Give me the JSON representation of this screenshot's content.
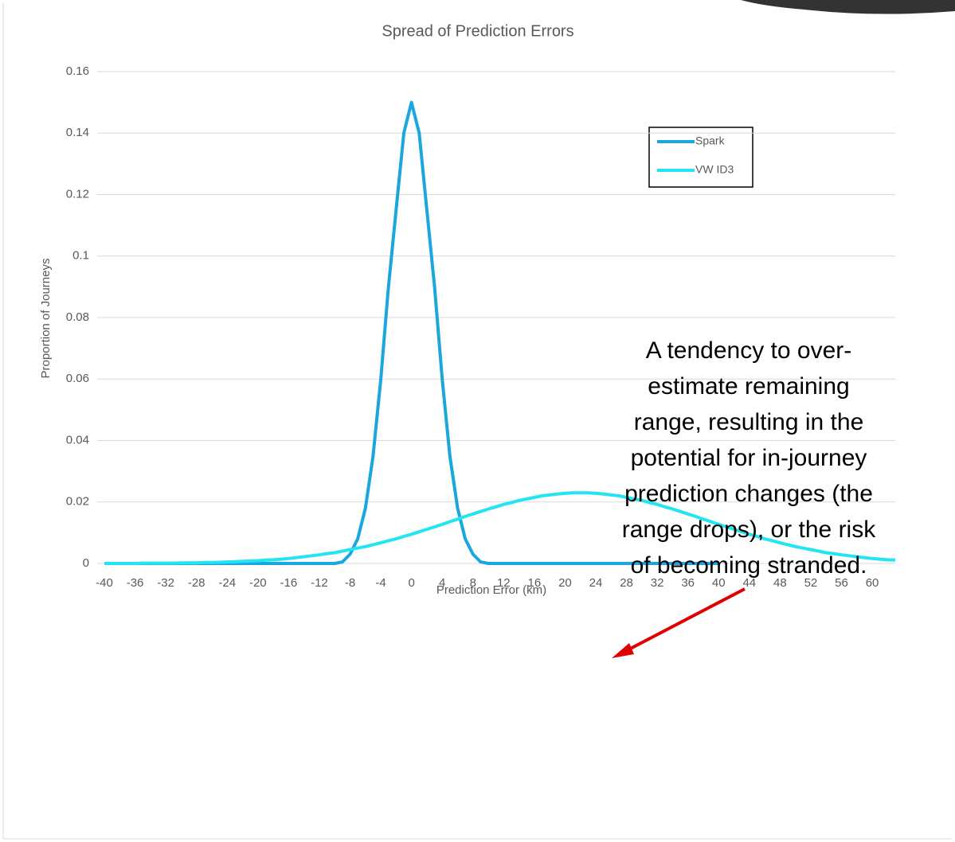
{
  "chart_data": {
    "type": "line",
    "title": "Spread of Prediction Errors",
    "x_label": "Prediction Error (km)",
    "y_label": "Proportion of Journeys",
    "x": [
      -40,
      -39,
      -38,
      -37,
      -36,
      -35,
      -34,
      -33,
      -32,
      -31,
      -30,
      -29,
      -28,
      -27,
      -26,
      -25,
      -24,
      -23,
      -22,
      -21,
      -20,
      -19,
      -18,
      -17,
      -16,
      -15,
      -14,
      -13,
      -12,
      -11,
      -10,
      -9,
      -8,
      -7,
      -6,
      -5,
      -4,
      -3,
      -2,
      -1,
      0,
      1,
      2,
      3,
      4,
      5,
      6,
      7,
      8,
      9,
      10,
      11,
      12,
      13,
      14,
      15,
      16,
      17,
      18,
      19,
      20,
      21,
      22,
      23,
      24,
      25,
      26,
      27,
      28,
      29,
      30,
      31,
      32,
      33,
      34,
      35,
      36,
      37,
      38,
      39,
      40,
      41,
      42,
      43,
      44,
      45,
      46,
      47,
      48,
      49,
      50,
      51,
      52,
      53,
      54,
      55,
      56,
      57,
      58,
      59,
      60,
      61,
      62,
      63
    ],
    "series": [
      {
        "name": "Spark",
        "color": "#1aa7de",
        "values": [
          0,
          0,
          0,
          0,
          0,
          0,
          0,
          0,
          0,
          0,
          0,
          0,
          0,
          0,
          0,
          0,
          0,
          0,
          0,
          0,
          0,
          0,
          0,
          0,
          0,
          0,
          0,
          0,
          0,
          0,
          0,
          0.0005,
          0.003,
          0.008,
          0.018,
          0.035,
          0.06,
          0.09,
          0.115,
          0.14,
          0.15,
          0.14,
          0.115,
          0.09,
          0.06,
          0.035,
          0.018,
          0.008,
          0.003,
          0.0005,
          0,
          0,
          0,
          0,
          0,
          0,
          0,
          0,
          0,
          0,
          0,
          0,
          0,
          0,
          0,
          0,
          0,
          0,
          0,
          0,
          0,
          0,
          0,
          0,
          0,
          0,
          0,
          0,
          0,
          0,
          0,
          null,
          null,
          null,
          null,
          null,
          null,
          null,
          null,
          null,
          null,
          null,
          null,
          null,
          null,
          null,
          null,
          null,
          null,
          null,
          null,
          null,
          null,
          null
        ]
      },
      {
        "name": "VW ID3",
        "color": "#22e4f2",
        "values": [
          0,
          0,
          0,
          0,
          0,
          0.0001,
          0.0001,
          0.0001,
          0.0001,
          0.0001,
          0.0002,
          0.0002,
          0.0002,
          0.0003,
          0.0003,
          0.0004,
          0.0005,
          0.0006,
          0.0007,
          0.0008,
          0.0009,
          0.0011,
          0.0012,
          0.0014,
          0.0016,
          0.0019,
          0.0022,
          0.0025,
          0.0028,
          0.0032,
          0.0035,
          0.004,
          0.0045,
          0.005,
          0.0055,
          0.0061,
          0.0067,
          0.0074,
          0.008,
          0.0088,
          0.0095,
          0.0103,
          0.0111,
          0.0119,
          0.0127,
          0.0136,
          0.0144,
          0.0153,
          0.0161,
          0.0169,
          0.0177,
          0.0184,
          0.0192,
          0.0198,
          0.0205,
          0.021,
          0.0215,
          0.022,
          0.0223,
          0.0226,
          0.0228,
          0.023,
          0.023,
          0.023,
          0.0228,
          0.0226,
          0.0223,
          0.022,
          0.0215,
          0.021,
          0.0205,
          0.0198,
          0.0192,
          0.0184,
          0.0177,
          0.0169,
          0.0161,
          0.0153,
          0.0144,
          0.0136,
          0.0127,
          0.0119,
          0.0111,
          0.0103,
          0.0095,
          0.0088,
          0.008,
          0.0074,
          0.0067,
          0.0061,
          0.0055,
          0.005,
          0.0045,
          0.004,
          0.0035,
          0.0032,
          0.0028,
          0.0025,
          0.0022,
          0.0019,
          0.0016,
          0.0014,
          0.0012,
          0.0011
        ]
      }
    ],
    "xlim": [
      -40,
      63
    ],
    "xticks": [
      -40,
      -36,
      -32,
      -28,
      -24,
      -20,
      -16,
      -12,
      -8,
      -4,
      0,
      4,
      8,
      12,
      16,
      20,
      24,
      28,
      32,
      36,
      40,
      44,
      48,
      52,
      56,
      60
    ],
    "ylim": [
      0,
      0.16
    ],
    "yticks": [
      0,
      0.02,
      0.04,
      0.06,
      0.08,
      0.1,
      0.12,
      0.14,
      0.16
    ],
    "grid": true,
    "legend": "top-right",
    "annotation": [
      "A tendency to over-",
      "estimate remaining",
      "range, resulting in the",
      "potential for in-journey",
      "prediction changes (the",
      "range drops), or the risk",
      "of becoming stranded."
    ]
  }
}
